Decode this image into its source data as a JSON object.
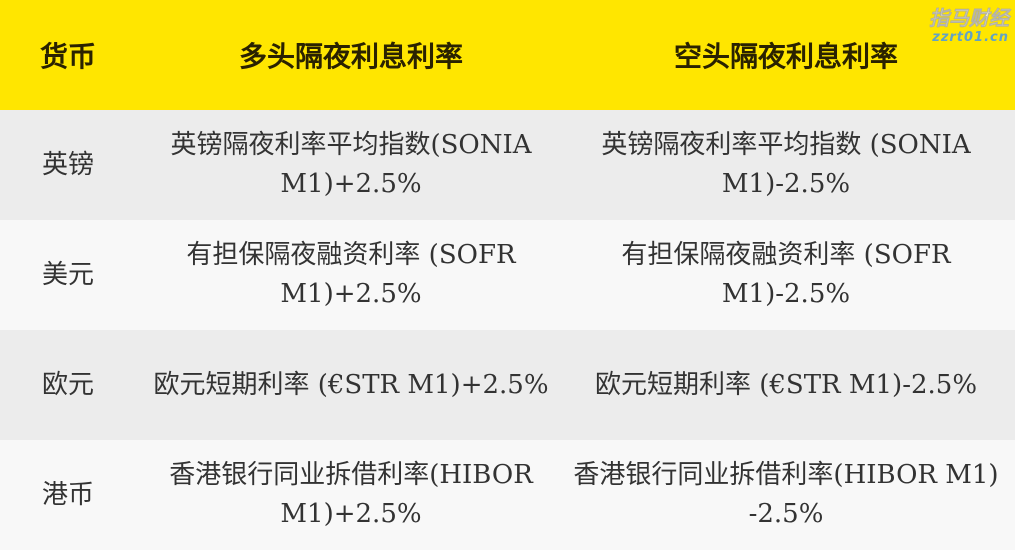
{
  "table": {
    "headers": [
      "货币",
      "多头隔夜利息利率",
      "空头隔夜利息利率"
    ],
    "rows": [
      {
        "currency": "英镑",
        "long": "英镑隔夜利率平均指数(SONIA M1)+2.5%",
        "short": "英镑隔夜利率平均指数 (SONIA M1)-2.5%"
      },
      {
        "currency": "美元",
        "long": "有担保隔夜融资利率 (SOFR M1)+2.5%",
        "short": "有担保隔夜融资利率 (SOFR M1)-2.5%"
      },
      {
        "currency": "欧元",
        "long": "欧元短期利率 (€STR M1)+2.5%",
        "short": "欧元短期利率 (€STR M1)-2.5%"
      },
      {
        "currency": "港币",
        "long": "香港银行同业拆借利率(HIBOR M1)+2.5%",
        "short": "香港银行同业拆借利率(HIBOR M1) -2.5%"
      }
    ]
  },
  "colors": {
    "header_bg": "#ffe600",
    "row_odd": "#ececec",
    "row_even": "#f8f8f8"
  },
  "watermark": {
    "text": "指马财经",
    "url": "zzrt01.cn"
  }
}
